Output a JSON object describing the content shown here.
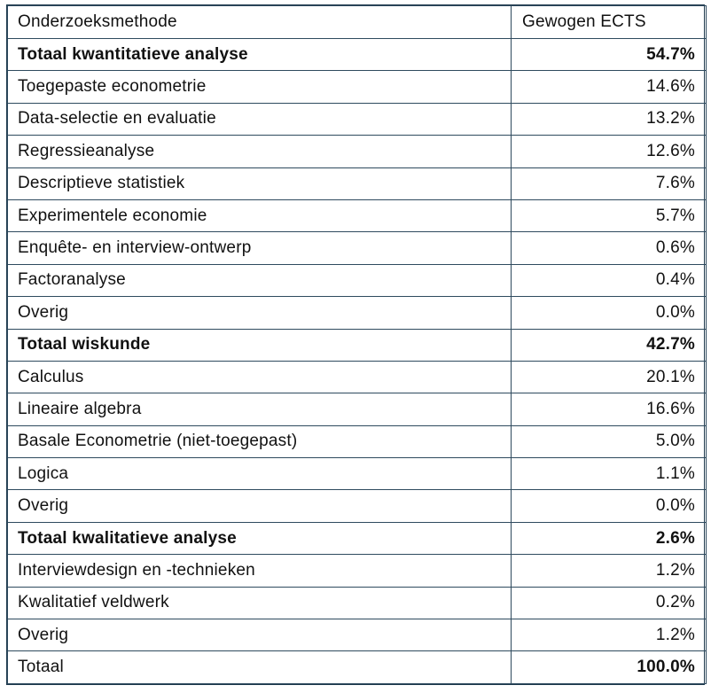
{
  "header": {
    "col_method": "Onderzoeksmethode",
    "col_ects": "Gewogen ECTS"
  },
  "rows": [
    {
      "label": "Totaal kwantitatieve analyse",
      "value": "54.7%",
      "total": true
    },
    {
      "label": "Toegepaste econometrie",
      "value": "14.6%",
      "total": false
    },
    {
      "label": "Data-selectie en evaluatie",
      "value": "13.2%",
      "total": false
    },
    {
      "label": "Regressieanalyse",
      "value": "12.6%",
      "total": false
    },
    {
      "label": "Descriptieve statistiek",
      "value": "7.6%",
      "total": false
    },
    {
      "label": "Experimentele economie",
      "value": "5.7%",
      "total": false
    },
    {
      "label": "Enquête- en interview-ontwerp",
      "value": "0.6%",
      "total": false
    },
    {
      "label": "Factoranalyse",
      "value": "0.4%",
      "total": false
    },
    {
      "label": "Overig",
      "value": "0.0%",
      "total": false
    },
    {
      "label": "Totaal wiskunde",
      "value": "42.7%",
      "total": true
    },
    {
      "label": "Calculus",
      "value": "20.1%",
      "total": false
    },
    {
      "label": "Lineaire algebra",
      "value": "16.6%",
      "total": false
    },
    {
      "label": "Basale Econometrie (niet-toegepast)",
      "value": "5.0%",
      "total": false
    },
    {
      "label": "Logica",
      "value": "1.1%",
      "total": false
    },
    {
      "label": "Overig",
      "value": "0.0%",
      "total": false
    },
    {
      "label": "Totaal kwalitatieve analyse",
      "value": "2.6%",
      "total": true
    },
    {
      "label": "Interviewdesign en -technieken",
      "value": "1.2%",
      "total": false
    },
    {
      "label": "Kwalitatief veldwerk",
      "value": "0.2%",
      "total": false
    },
    {
      "label": "Overig",
      "value": "1.2%",
      "total": false
    },
    {
      "label": "Totaal",
      "value": "100.0%",
      "total": false
    }
  ]
}
